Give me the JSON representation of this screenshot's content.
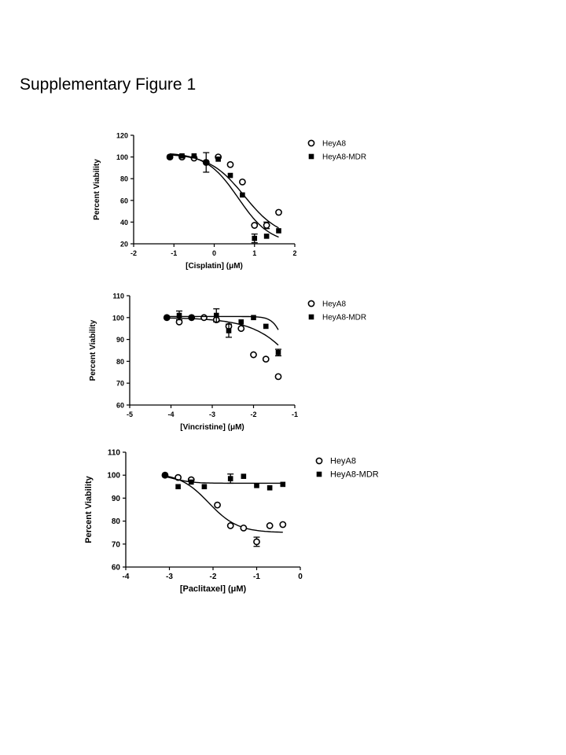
{
  "page": {
    "title": "Supplementary Figure 1"
  },
  "colors": {
    "ink": "#000000",
    "background": "#ffffff"
  },
  "chart_data": [
    {
      "type": "scatter",
      "xlabel": "[Cisplatin] (μM)",
      "ylabel": "Percent Viability",
      "xlim": [
        -2,
        2
      ],
      "ylim": [
        20,
        120
      ],
      "xticks": [
        "-2",
        "-1",
        "0",
        "1",
        "2"
      ],
      "yticks": [
        "20",
        "40",
        "60",
        "80",
        "100",
        "120"
      ],
      "legend_position": "top-right",
      "series": [
        {
          "name": "HeyA8",
          "marker": "open-circle",
          "x": [
            -1.1,
            -0.8,
            -0.5,
            -0.2,
            0.1,
            0.4,
            0.7,
            1.0,
            1.3,
            1.6
          ],
          "y": [
            100,
            100,
            99,
            95,
            100,
            93,
            77,
            37,
            37,
            49
          ],
          "err": [
            0,
            0,
            0,
            0,
            0,
            0,
            0,
            0,
            3,
            0
          ],
          "fit": {
            "top": 103,
            "bottom": 25,
            "logec50": 0.75,
            "hill": -1.0
          }
        },
        {
          "name": "HeyA8-MDR",
          "marker": "filled-square",
          "x": [
            -1.1,
            -0.8,
            -0.5,
            -0.2,
            0.1,
            0.4,
            0.7,
            1.0,
            1.3,
            1.6
          ],
          "y": [
            100,
            101,
            101,
            95,
            98,
            83,
            65,
            25,
            27,
            32
          ],
          "err": [
            0,
            0,
            0,
            9,
            0,
            0,
            0,
            4,
            0,
            0
          ],
          "fit": {
            "top": 104,
            "bottom": 20,
            "logec50": 0.6,
            "hill": -1.1
          }
        }
      ]
    },
    {
      "type": "scatter",
      "xlabel": "[Vincristine] (μM)",
      "ylabel": "Percent Viability",
      "xlim": [
        -5,
        -1
      ],
      "ylim": [
        60,
        110
      ],
      "xticks": [
        "-5",
        "-4",
        "-3",
        "-2",
        "-1"
      ],
      "yticks": [
        "60",
        "70",
        "80",
        "90",
        "100",
        "110"
      ],
      "legend_position": "top-right",
      "series": [
        {
          "name": "HeyA8",
          "marker": "open-circle",
          "x": [
            -4.1,
            -3.8,
            -3.5,
            -3.2,
            -2.9,
            -2.6,
            -2.3,
            -2.0,
            -1.7,
            -1.4
          ],
          "y": [
            100,
            98,
            100,
            100,
            99,
            96,
            95,
            83,
            81,
            73
          ],
          "err": [
            0,
            0,
            0,
            0,
            0,
            0,
            0,
            0,
            0,
            0
          ],
          "fit": {
            "top": 100,
            "bottom": 0,
            "logec50": -0.2,
            "hill": -0.7
          }
        },
        {
          "name": "HeyA8-MDR",
          "marker": "filled-square",
          "x": [
            -4.1,
            -3.8,
            -3.5,
            -2.9,
            -2.6,
            -2.3,
            -2.0,
            -1.7,
            -1.4
          ],
          "y": [
            100,
            101,
            100,
            101,
            94,
            98,
            100,
            96,
            84
          ],
          "err": [
            0,
            2,
            0,
            3,
            3,
            0,
            0,
            0,
            1.5
          ],
          "fit": {
            "top": 100.5,
            "bottom": 60,
            "logec50": -1.15,
            "hill": -3.0
          }
        }
      ]
    },
    {
      "type": "scatter",
      "xlabel": "[Paclitaxel] (μM)",
      "ylabel": "Percent Viability",
      "xlim": [
        -4,
        0
      ],
      "ylim": [
        60,
        110
      ],
      "xticks": [
        "-4",
        "-3",
        "-2",
        "-1",
        "0"
      ],
      "yticks": [
        "60",
        "70",
        "80",
        "90",
        "100",
        "110"
      ],
      "legend_position": "top-right",
      "series": [
        {
          "name": "HeyA8",
          "marker": "open-circle",
          "x": [
            -3.1,
            -2.8,
            -2.5,
            -1.9,
            -1.6,
            -1.3,
            -1.0,
            -0.7,
            -0.4
          ],
          "y": [
            100,
            99,
            98,
            87,
            78,
            77,
            71,
            78,
            78.5
          ],
          "err": [
            0,
            0,
            0,
            0,
            0,
            0,
            2,
            0,
            0
          ],
          "fit": {
            "top": 101,
            "bottom": 75,
            "logec50": -2.1,
            "hill": -1.3
          }
        },
        {
          "name": "HeyA8-MDR",
          "marker": "filled-square",
          "x": [
            -3.1,
            -2.8,
            -2.5,
            -2.2,
            -1.6,
            -1.3,
            -1.0,
            -0.7,
            -0.4
          ],
          "y": [
            100,
            95,
            97,
            95,
            98.5,
            99.5,
            95.5,
            94.5,
            96
          ],
          "err": [
            0,
            0,
            0,
            0,
            2,
            0,
            0,
            0,
            0
          ],
          "fit": {
            "top": 100.5,
            "bottom": 96.5,
            "logec50": -2.9,
            "hill": -2.0
          }
        }
      ]
    }
  ]
}
